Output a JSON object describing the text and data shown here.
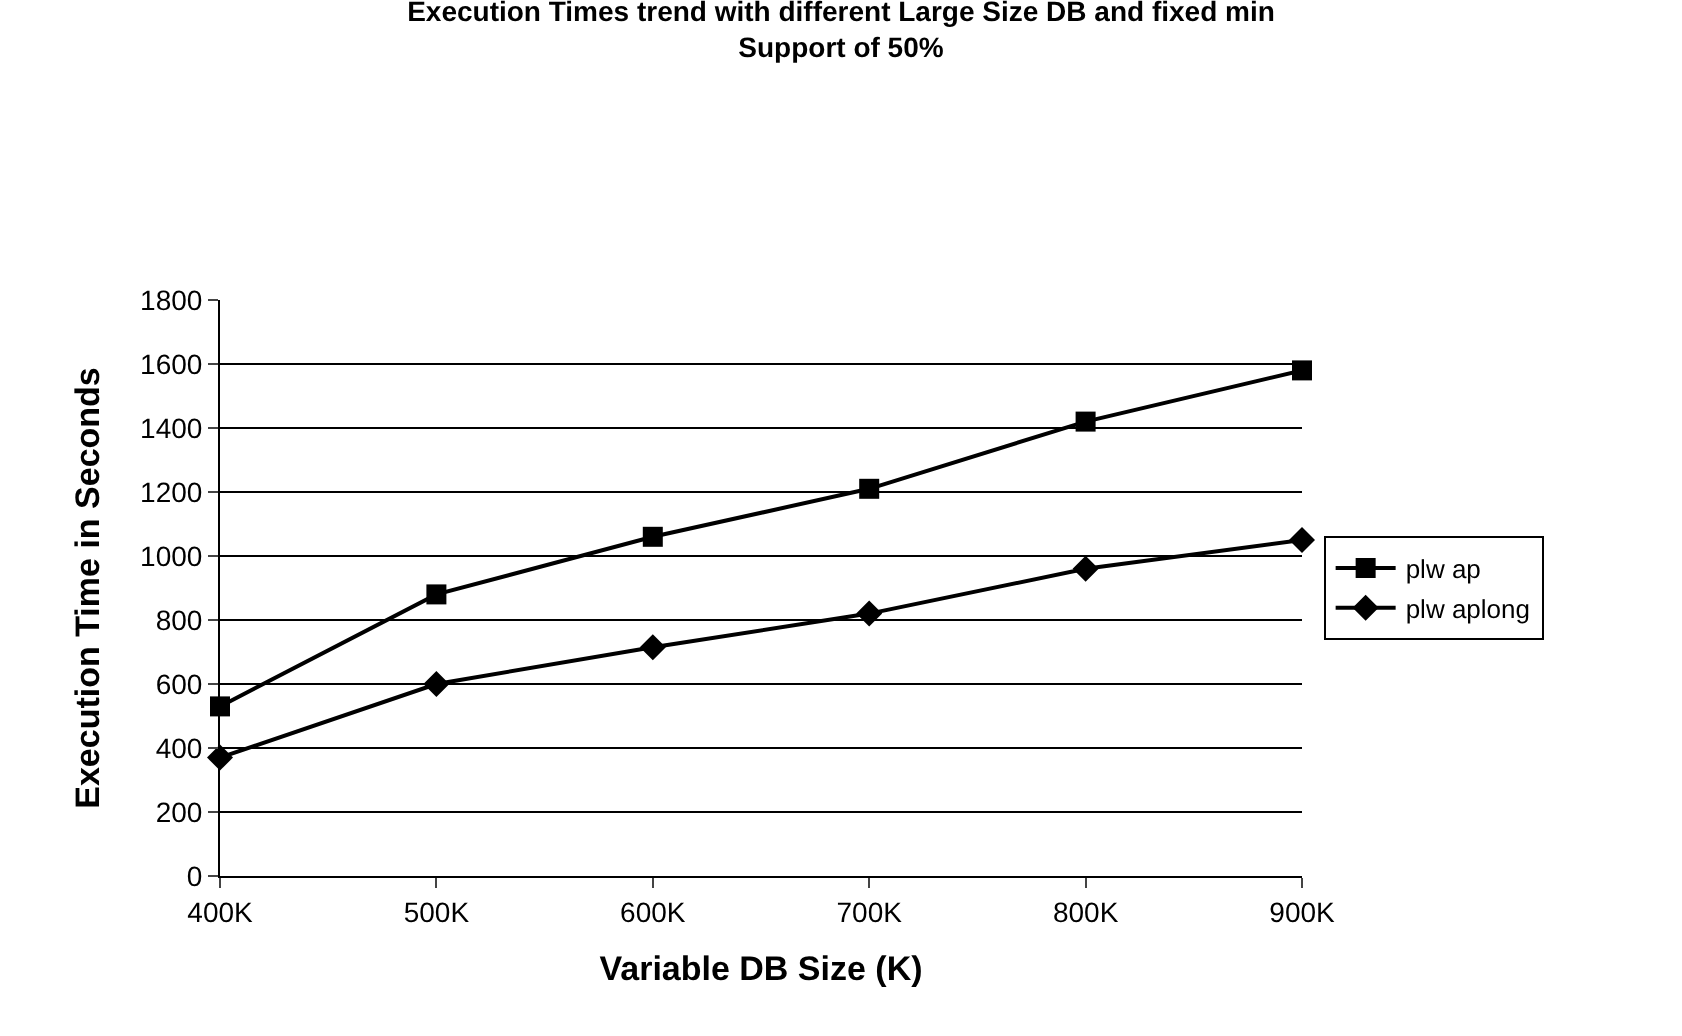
{
  "chart_data": {
    "type": "line",
    "title": "Execution Times trend with different Large Size DB and fixed min\nSupport of 50%",
    "xlabel": "Variable DB Size (K)",
    "ylabel": "Execution Time in Seconds",
    "categories": [
      "400K",
      "500K",
      "600K",
      "700K",
      "800K",
      "900K"
    ],
    "series": [
      {
        "name": "plw ap",
        "color": "#000000",
        "marker": "square",
        "values": [
          530,
          880,
          1060,
          1210,
          1420,
          1580
        ]
      },
      {
        "name": "plw aplong",
        "color": "#000000",
        "marker": "diamond",
        "values": [
          370,
          600,
          715,
          820,
          960,
          1050
        ]
      }
    ],
    "ylim": [
      0,
      1800
    ],
    "yticks": [
      0,
      200,
      400,
      600,
      800,
      1000,
      1200,
      1400,
      1600,
      1800
    ],
    "grid": "y",
    "legend": "right",
    "line_style": "solid"
  }
}
